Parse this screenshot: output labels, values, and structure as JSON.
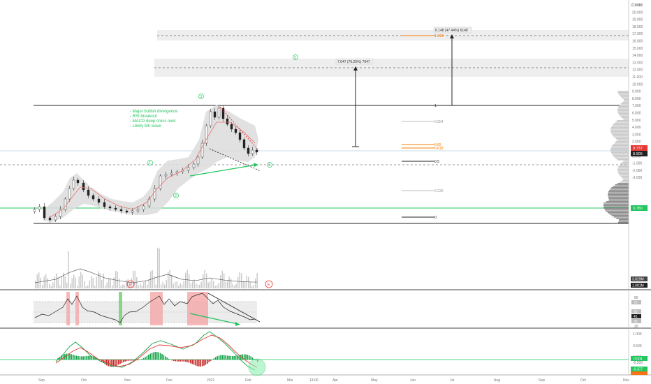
{
  "price_axis": {
    "currency": "Z, NOK",
    "labels": [
      "21.000",
      "20.000",
      "19.000",
      "18.000",
      "17.000",
      "16.000",
      "15.000",
      "14.000",
      "13.000",
      "12.000",
      "11.000",
      "10.000",
      "9.000",
      "8.000",
      "7.000",
      "6.000",
      "5.000",
      "4.000",
      "3.000",
      "2.000",
      "1.000",
      "0.000",
      "-1.000",
      "-2.000",
      "-3.000"
    ],
    "last_price": "8.905",
    "secondary_price": "9.737",
    "hline_price": "3.780",
    "volume_labels": [
      "3.829M",
      "1.081M"
    ]
  },
  "rsi_axis": {
    "labels": [
      "80",
      "70",
      "50",
      "41",
      "30",
      "20"
    ]
  },
  "macd_axis": {
    "labels": [
      "1.000",
      "0.500",
      "0.000",
      "-0.500"
    ],
    "value_green": "0.004",
    "value_red": "-0.377"
  },
  "time_axis": [
    "Sep",
    "Oct",
    "Nov",
    "Dec",
    "2021",
    "Feb",
    "Mar",
    "13:00",
    "Apr",
    "May",
    "Jun",
    "Jul",
    "Aug",
    "Sep",
    "Oct",
    "Nov"
  ],
  "annotations": {
    "notes": [
      "- Major bullish divergence",
      "- RSI breakout",
      "- MACD deep cross over",
      "- Likely 5th wave"
    ],
    "wave_labels": [
      "1",
      "2",
      "3",
      "4",
      "5"
    ],
    "event_labels": [
      "E",
      "E"
    ],
    "measure_1": "7.047 (76.20%) 7047",
    "measure_2": "6.148 (47.44%) 6148",
    "fib_levels": [
      "1",
      "0.854",
      "0.65",
      "0.618",
      "0.5",
      "0.236",
      "0",
      "1.618"
    ]
  },
  "colors": {
    "accent_green": "#22c55e",
    "fib_orange": "#f57c00",
    "candle_dark": "#222222",
    "bb_fill": "#d9d9d9",
    "macd_red": "#c62828",
    "rsi_band": "#e6e6e6"
  }
}
